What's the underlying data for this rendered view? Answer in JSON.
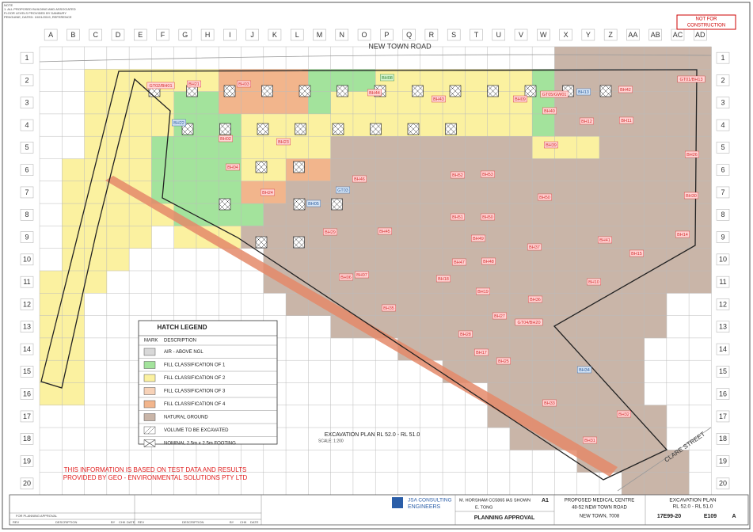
{
  "notes": [
    "NOTE",
    "1. ALL PROPOSED BUILDING AND ASSOCIATED",
    "FLOOR LEVELS PROVIDED BY DANBURY",
    "PENGUINE, DATED: 10/01/2019, REFERENCE"
  ],
  "stamp": [
    "NOT FOR",
    "CONSTRUCTION"
  ],
  "header": {
    "columns": [
      "A",
      "B",
      "C",
      "D",
      "E",
      "F",
      "G",
      "H",
      "I",
      "J",
      "K",
      "L",
      "M",
      "N",
      "O",
      "P",
      "Q",
      "R",
      "S",
      "T",
      "U",
      "V",
      "W",
      "X",
      "Y",
      "Z",
      "AA",
      "AB",
      "AC",
      "AD"
    ],
    "rows": [
      "1",
      "2",
      "3",
      "4",
      "5",
      "6",
      "7",
      "8",
      "9",
      "10",
      "11",
      "12",
      "13",
      "14",
      "15",
      "16",
      "17",
      "18",
      "19",
      "20"
    ]
  },
  "road": "NEW TOWN ROAD",
  "street": "CLARE STREET",
  "labels": [
    "GT02/BH01",
    "BH21",
    "BH03",
    "BH08",
    "BH44",
    "BH43",
    "BH09",
    "GT05/GW01",
    "BH13",
    "BH42",
    "GT01/BH13",
    "BH22",
    "BH40",
    "BH02",
    "BH23",
    "BH12",
    "BH11",
    "BH39",
    "BH26",
    "BH04",
    "BH52",
    "BH53",
    "BH46",
    "GT03",
    "BH24",
    "BH50",
    "BH30",
    "BH05",
    "BH51",
    "BH50",
    "BH29",
    "BH45",
    "BH49",
    "BH14",
    "BH41",
    "BH37",
    "BH15",
    "BH47",
    "BH48",
    "BH06",
    "BH07",
    "BH18",
    "BH10",
    "BH19",
    "BH36",
    "BH35",
    "BH27",
    "GT04/BH20",
    "BH28",
    "BH17",
    "BH25",
    "BH34",
    "BH33",
    "BH32",
    "BH31"
  ],
  "legend": {
    "title": "HATCH LEGEND",
    "headers": [
      "MARK",
      "DESCRIPTION"
    ],
    "items": [
      "AIR - ABOVE NGL",
      "FILL CLASSIFICATION OF 1",
      "FILL CLASSIFICATION OF 2",
      "FILL CLASSIFICATION OF 3",
      "FILL CLASSIFICATION OF 4",
      "NATURAL GROUND",
      "VOLUME TO BE EXCAVATED",
      "NOMINAL 2.5m x 2.5m FOOTING"
    ]
  },
  "plan": {
    "title": "EXCAVATION PLAN RL 52.0 - RL 51.0",
    "scale": "SCALE: 1:200"
  },
  "disclaimer": [
    "THIS INFORMATION IS BASED ON TEST DATA AND RESULTS",
    "PROVIDED BY GEO - ENVIRONMENTAL SOLUTIONS PTY LTD"
  ],
  "revision": {
    "headers": [
      "REV",
      "DESCRIPTION",
      "BY",
      "CHK",
      "DATE"
    ],
    "row": "FOR PLANNING APPROVAL"
  },
  "title_block": {
    "company": "JSA CONSULTING",
    "company2": "ENGINEERS",
    "engineer": "M. HORSHAM CC5865 I",
    "scale": "AS SHOWN",
    "size": "A1",
    "drawn": "E. TONG",
    "status": "PLANNING APPROVAL",
    "project": [
      "PROPOSED MEDICAL CENTRE",
      "48-52 NEW TOWN ROAD",
      "NEW TOWN, 7008"
    ],
    "drawing_title": [
      "EXCAVATION PLAN",
      "RL 52.0 - RL 51.0"
    ],
    "project_no": "17E99-20",
    "drawing_no": "E109",
    "rev": "A"
  }
}
